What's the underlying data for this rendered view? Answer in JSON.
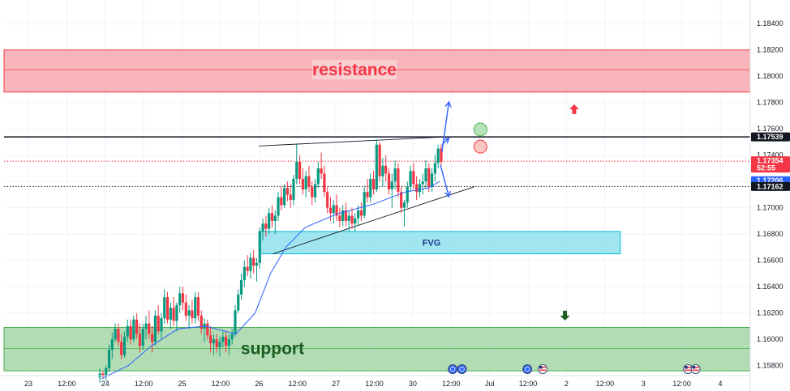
{
  "chart_data": {
    "type": "candlestick",
    "x_axis_labels": [
      "23",
      "12:00",
      "24",
      "12:00",
      "25",
      "12:00",
      "26",
      "12:00",
      "27",
      "12:00",
      "30",
      "12:00",
      "Jul",
      "12:00",
      "2",
      "12:00",
      "3",
      "12:00",
      "4"
    ],
    "y_ticks": [
      "1.18400",
      "1.18200",
      "1.18000",
      "1.17800",
      "1.17600",
      "1.17400",
      "1.17200",
      "1.17000",
      "1.16800",
      "1.16600",
      "1.16400",
      "1.16200",
      "1.16000",
      "1.15800"
    ],
    "y_range": [
      1.1573,
      1.1858
    ],
    "x_range_days": [
      0,
      10
    ],
    "price_tags": [
      {
        "value": 1.17539,
        "text": "1.17539",
        "bg": "#131722"
      },
      {
        "value": 1.17354,
        "text": "1.17354",
        "sub": "52:55",
        "bg": "#f23645"
      },
      {
        "value": 1.17206,
        "text": "1.17206",
        "bg": "#2962ff"
      },
      {
        "value": 1.17162,
        "text": "1.17162",
        "bg": "#131722"
      }
    ],
    "zones": [
      {
        "name": "resistance",
        "label": "resistance",
        "y_top": 1.182,
        "y_bottom": 1.1788,
        "mid": 1.1805,
        "x_start": 0.0,
        "x_end": 10.0,
        "fill": "#f7a8ae",
        "border": "#f23645",
        "text_color": "#f23645"
      },
      {
        "name": "fvg",
        "label": "FVG",
        "y_top": 1.1682,
        "y_bottom": 1.1665,
        "x_start": 3.0,
        "x_end": 7.7,
        "fill": "#8fe0ec",
        "border": "#00bcd4",
        "text_color": "#1e3a8a"
      },
      {
        "name": "support",
        "label": "support",
        "y_top": 1.1609,
        "y_bottom": 1.1576,
        "mid": 1.1593,
        "x_start": 0.0,
        "x_end": 10.0,
        "fill": "#a5d6a7",
        "border": "#4caf50",
        "text_color": "#1b5e20"
      }
    ],
    "horizontal_lines": [
      {
        "value": 1.17539,
        "style": "solid",
        "color": "#131722",
        "x_start": 0.0
      },
      {
        "value": 1.17162,
        "style": "dotted",
        "color": "#131722",
        "x_start": 0.0
      },
      {
        "value": 1.17354,
        "style": "dotted",
        "color": "#f23645",
        "x_start": 0.0
      }
    ],
    "trendlines": [
      {
        "x1": 3.0,
        "y1": 1.1747,
        "x2": 5.45,
        "y2": 1.1754
      },
      {
        "x1": 3.18,
        "y1": 1.1665,
        "x2": 5.8,
        "y2": 1.1716
      }
    ],
    "moving_average": [
      [
        0.95,
        1.157
      ],
      [
        1.3,
        1.158
      ],
      [
        1.6,
        1.1595
      ],
      [
        1.95,
        1.1608
      ],
      [
        2.3,
        1.161
      ],
      [
        2.7,
        1.1604
      ],
      [
        2.95,
        1.162
      ],
      [
        3.15,
        1.165
      ],
      [
        3.35,
        1.167
      ],
      [
        3.6,
        1.1685
      ],
      [
        4.0,
        1.1695
      ],
      [
        4.5,
        1.1703
      ],
      [
        4.9,
        1.1712
      ],
      [
        5.2,
        1.1715
      ],
      [
        5.35,
        1.172
      ]
    ],
    "candles": [
      [
        0.93,
        1.1571,
        1.1578,
        1.1567,
        1.1574
      ],
      [
        0.97,
        1.1574,
        1.1576,
        1.157,
        1.1572
      ],
      [
        1.01,
        1.1572,
        1.158,
        1.1568,
        1.1578
      ],
      [
        1.05,
        1.1578,
        1.1596,
        1.1575,
        1.1592
      ],
      [
        1.09,
        1.1592,
        1.1605,
        1.1585,
        1.16
      ],
      [
        1.13,
        1.16,
        1.1612,
        1.1598,
        1.1608
      ],
      [
        1.17,
        1.1608,
        1.1612,
        1.1595,
        1.1598
      ],
      [
        1.21,
        1.1598,
        1.1604,
        1.1585,
        1.1588
      ],
      [
        1.25,
        1.1588,
        1.1606,
        1.1586,
        1.1602
      ],
      [
        1.29,
        1.1602,
        1.1615,
        1.1598,
        1.161
      ],
      [
        1.33,
        1.161,
        1.1615,
        1.1596,
        1.16
      ],
      [
        1.37,
        1.16,
        1.1618,
        1.1598,
        1.1615
      ],
      [
        1.41,
        1.1615,
        1.162,
        1.16,
        1.1604
      ],
      [
        1.45,
        1.1604,
        1.1612,
        1.159,
        1.1595
      ],
      [
        1.49,
        1.1595,
        1.1612,
        1.1592,
        1.1608
      ],
      [
        1.53,
        1.1608,
        1.1618,
        1.16,
        1.1612
      ],
      [
        1.57,
        1.1612,
        1.1622,
        1.16,
        1.1604
      ],
      [
        1.61,
        1.1604,
        1.161,
        1.159,
        1.1598
      ],
      [
        1.65,
        1.1598,
        1.1622,
        1.1595,
        1.1618
      ],
      [
        1.69,
        1.1618,
        1.1626,
        1.1604,
        1.1606
      ],
      [
        1.73,
        1.1606,
        1.162,
        1.16,
        1.1616
      ],
      [
        1.77,
        1.1616,
        1.1638,
        1.1612,
        1.1632
      ],
      [
        1.81,
        1.1632,
        1.1636,
        1.1612,
        1.1615
      ],
      [
        1.85,
        1.1615,
        1.1628,
        1.1608,
        1.1624
      ],
      [
        1.89,
        1.1624,
        1.1632,
        1.161,
        1.1614
      ],
      [
        1.93,
        1.1614,
        1.1628,
        1.1606,
        1.1626
      ],
      [
        1.97,
        1.1626,
        1.164,
        1.162,
        1.1635
      ],
      [
        2.01,
        1.1635,
        1.164,
        1.1622,
        1.1628
      ],
      [
        2.05,
        1.1628,
        1.1634,
        1.1614,
        1.1618
      ],
      [
        2.09,
        1.1618,
        1.1626,
        1.1608,
        1.1622
      ],
      [
        2.13,
        1.1622,
        1.163,
        1.1612,
        1.1616
      ],
      [
        2.17,
        1.1616,
        1.1636,
        1.1612,
        1.1632
      ],
      [
        2.21,
        1.1632,
        1.1636,
        1.1614,
        1.1618
      ],
      [
        2.25,
        1.1618,
        1.1622,
        1.1604,
        1.1608
      ],
      [
        2.29,
        1.1608,
        1.1616,
        1.1598,
        1.1612
      ],
      [
        2.33,
        1.1612,
        1.1615,
        1.16,
        1.1603
      ],
      [
        2.37,
        1.1603,
        1.161,
        1.159,
        1.1597
      ],
      [
        2.41,
        1.1597,
        1.1604,
        1.1588,
        1.16
      ],
      [
        2.45,
        1.16,
        1.1604,
        1.159,
        1.1594
      ],
      [
        2.49,
        1.1594,
        1.1602,
        1.1587,
        1.1598
      ],
      [
        2.53,
        1.1598,
        1.1606,
        1.1594,
        1.1602
      ],
      [
        2.57,
        1.1602,
        1.1606,
        1.159,
        1.1595
      ],
      [
        2.61,
        1.1595,
        1.1604,
        1.1588,
        1.16
      ],
      [
        2.65,
        1.16,
        1.1608,
        1.1596,
        1.1604
      ],
      [
        2.69,
        1.1604,
        1.1626,
        1.1602,
        1.1622
      ],
      [
        2.73,
        1.1622,
        1.1638,
        1.162,
        1.1634
      ],
      [
        2.77,
        1.1634,
        1.165,
        1.163,
        1.1645
      ],
      [
        2.81,
        1.1645,
        1.166,
        1.164,
        1.1655
      ],
      [
        2.85,
        1.1655,
        1.1664,
        1.1648,
        1.1652
      ],
      [
        2.89,
        1.1652,
        1.1666,
        1.1646,
        1.1662
      ],
      [
        2.93,
        1.1662,
        1.1668,
        1.165,
        1.1656
      ],
      [
        2.97,
        1.1656,
        1.1662,
        1.1644,
        1.1658
      ],
      [
        3.01,
        1.1658,
        1.1685,
        1.1654,
        1.1682
      ],
      [
        3.05,
        1.1682,
        1.1692,
        1.1675,
        1.1688
      ],
      [
        3.09,
        1.1688,
        1.1694,
        1.1678,
        1.1684
      ],
      [
        3.13,
        1.1684,
        1.17,
        1.168,
        1.1696
      ],
      [
        3.17,
        1.1696,
        1.1702,
        1.1685,
        1.169
      ],
      [
        3.21,
        1.169,
        1.1698,
        1.168,
        1.1694
      ],
      [
        3.25,
        1.1694,
        1.1712,
        1.169,
        1.1708
      ],
      [
        3.29,
        1.1708,
        1.1716,
        1.1698,
        1.1702
      ],
      [
        3.33,
        1.1702,
        1.1718,
        1.17,
        1.1715
      ],
      [
        3.37,
        1.1715,
        1.172,
        1.1705,
        1.171
      ],
      [
        3.41,
        1.171,
        1.1718,
        1.17,
        1.1706
      ],
      [
        3.45,
        1.1706,
        1.1725,
        1.1702,
        1.1722
      ],
      [
        3.49,
        1.1722,
        1.1748,
        1.1718,
        1.1735
      ],
      [
        3.53,
        1.1735,
        1.174,
        1.1718,
        1.1722
      ],
      [
        3.57,
        1.1722,
        1.173,
        1.171,
        1.1714
      ],
      [
        3.61,
        1.1714,
        1.1728,
        1.1708,
        1.1724
      ],
      [
        3.65,
        1.1724,
        1.1732,
        1.1712,
        1.1716
      ],
      [
        3.69,
        1.1716,
        1.172,
        1.1702,
        1.1708
      ],
      [
        3.73,
        1.1708,
        1.1722,
        1.1704,
        1.1718
      ],
      [
        3.77,
        1.1718,
        1.1735,
        1.1715,
        1.173
      ],
      [
        3.81,
        1.173,
        1.1742,
        1.1722,
        1.1726
      ],
      [
        3.85,
        1.1726,
        1.1732,
        1.1708,
        1.1712
      ],
      [
        3.89,
        1.1712,
        1.1716,
        1.1696,
        1.17
      ],
      [
        3.93,
        1.17,
        1.1708,
        1.169,
        1.1696
      ],
      [
        3.97,
        1.1696,
        1.1706,
        1.1688,
        1.1702
      ],
      [
        4.01,
        1.1702,
        1.171,
        1.169,
        1.1694
      ],
      [
        4.05,
        1.1694,
        1.17,
        1.1685,
        1.169
      ],
      [
        4.09,
        1.169,
        1.1702,
        1.1686,
        1.1698
      ],
      [
        4.13,
        1.1698,
        1.1704,
        1.1686,
        1.169
      ],
      [
        4.17,
        1.169,
        1.1698,
        1.1682,
        1.1694
      ],
      [
        4.21,
        1.1694,
        1.17,
        1.1684,
        1.1688
      ],
      [
        4.25,
        1.1688,
        1.1696,
        1.1682,
        1.1692
      ],
      [
        4.29,
        1.1692,
        1.1702,
        1.1686,
        1.1698
      ],
      [
        4.33,
        1.1698,
        1.1704,
        1.169,
        1.1694
      ],
      [
        4.37,
        1.1694,
        1.1716,
        1.1692,
        1.1712
      ],
      [
        4.41,
        1.1712,
        1.1722,
        1.1704,
        1.1708
      ],
      [
        4.45,
        1.1708,
        1.1726,
        1.1704,
        1.1722
      ],
      [
        4.49,
        1.1722,
        1.1728,
        1.171,
        1.1714
      ],
      [
        4.53,
        1.1714,
        1.1752,
        1.1712,
        1.1748
      ],
      [
        4.57,
        1.1748,
        1.175,
        1.172,
        1.1724
      ],
      [
        4.61,
        1.1724,
        1.1738,
        1.1716,
        1.1732
      ],
      [
        4.65,
        1.1732,
        1.174,
        1.172,
        1.1726
      ],
      [
        4.69,
        1.1726,
        1.173,
        1.171,
        1.1714
      ],
      [
        4.73,
        1.1714,
        1.1726,
        1.17,
        1.172
      ],
      [
        4.77,
        1.172,
        1.1736,
        1.1714,
        1.173
      ],
      [
        4.81,
        1.173,
        1.1734,
        1.1708,
        1.1712
      ],
      [
        4.85,
        1.1712,
        1.1716,
        1.1696,
        1.17
      ],
      [
        4.89,
        1.17,
        1.1706,
        1.1686,
        1.1704
      ],
      [
        4.93,
        1.1704,
        1.172,
        1.17,
        1.1716
      ],
      [
        4.97,
        1.1716,
        1.1732,
        1.1712,
        1.1728
      ],
      [
        5.01,
        1.1728,
        1.1734,
        1.1714,
        1.1718
      ],
      [
        5.05,
        1.1718,
        1.1724,
        1.1706,
        1.1712
      ],
      [
        5.09,
        1.1712,
        1.1722,
        1.1708,
        1.1718
      ],
      [
        5.13,
        1.1718,
        1.1726,
        1.171,
        1.172
      ],
      [
        5.17,
        1.172,
        1.1736,
        1.1715,
        1.173
      ],
      [
        5.21,
        1.173,
        1.1734,
        1.1712,
        1.1716
      ],
      [
        5.25,
        1.1716,
        1.173,
        1.1712,
        1.1726
      ],
      [
        5.29,
        1.1726,
        1.174,
        1.172,
        1.1734
      ],
      [
        5.33,
        1.1734,
        1.1748,
        1.173,
        1.1745
      ],
      [
        5.37,
        1.1745,
        1.1748,
        1.1732,
        1.1735
      ]
    ],
    "arrows": [
      {
        "x1": 5.38,
        "y1": 1.17425,
        "x2": 5.47,
        "y2": 1.17805,
        "color": "#2962ff"
      },
      {
        "x1": 5.36,
        "y1": 1.17325,
        "x2": 5.47,
        "y2": 1.17085,
        "color": "#2962ff"
      },
      {
        "x1": 5.38,
        "y1": 1.1748,
        "x2": 5.47,
        "y2": 1.1753,
        "color": "#2962ff"
      }
    ],
    "circles": [
      {
        "x": 5.88,
        "y": 1.17595,
        "fill": "#b7e4b9",
        "stroke": "#4caf50"
      },
      {
        "x": 5.88,
        "y": 1.17465,
        "fill": "#f8c7c0",
        "stroke": "#f23645"
      }
    ],
    "markers": [
      {
        "x": 7.1,
        "y": 1.1775,
        "type": "up",
        "color": "#f23645"
      },
      {
        "x": 6.98,
        "y": 1.1618,
        "type": "down",
        "color": "#1b5e20"
      }
    ],
    "event_flags": [
      {
        "x": 5.52,
        "kind": "globe"
      },
      {
        "x": 5.64,
        "kind": "globe"
      },
      {
        "x": 6.49,
        "kind": "globe"
      },
      {
        "x": 6.69,
        "kind": "us"
      },
      {
        "x": 8.58,
        "kind": "us"
      },
      {
        "x": 8.68,
        "kind": "us"
      }
    ],
    "colors": {
      "up": "#089981",
      "down": "#f23645",
      "ma": "#2962ff",
      "grid": "#f0f3fa",
      "axis": "#e0e3eb"
    }
  }
}
